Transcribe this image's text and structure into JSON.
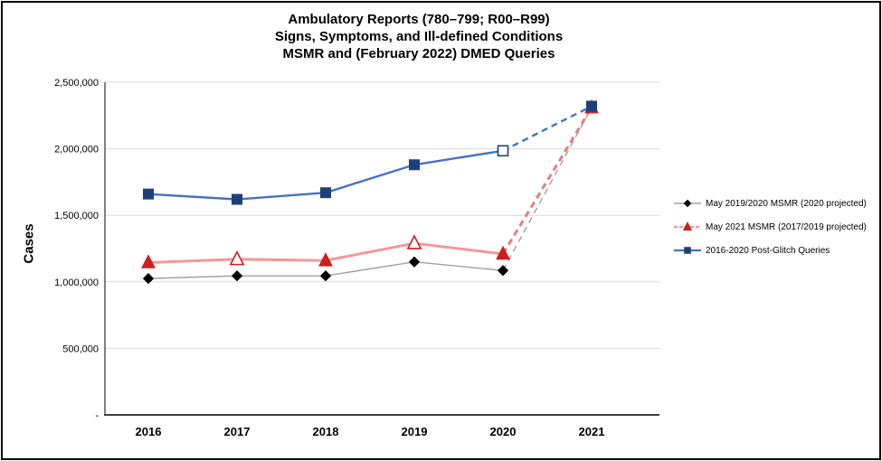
{
  "title": {
    "line1": "Ambulatory Reports (780–799; R00–R99)",
    "line2": "Signs, Symptoms, and Ill-defined Conditions",
    "line3": "MSMR and (February 2022) DMED Queries"
  },
  "chart_data": {
    "type": "line",
    "title": "Ambulatory Reports (780–799; R00–R99) Signs, Symptoms, and Ill-defined Conditions MSMR and (February 2022) DMED Queries",
    "xlabel": "",
    "ylabel": "Cases",
    "categories": [
      2016,
      2017,
      2018,
      2019,
      2020,
      2021
    ],
    "x_tick_labels": [
      "2016",
      "2017",
      "2018",
      "2019",
      "2020",
      "2021"
    ],
    "ylim": [
      0,
      2500000
    ],
    "y_ticks": [
      {
        "value": 0,
        "label": "-"
      },
      {
        "value": 500000,
        "label": "500,000"
      },
      {
        "value": 1000000,
        "label": "1,000,000"
      },
      {
        "value": 1500000,
        "label": "1,500,000"
      },
      {
        "value": 2000000,
        "label": "2,000,000"
      },
      {
        "value": 2500000,
        "label": "2,500,000"
      }
    ],
    "grid": true,
    "grid_color": "#D9D9D9",
    "axis_color": "#404040",
    "legend_position": "right",
    "series": [
      {
        "name": "May 2019/2020 MSMR (2020 projected)",
        "values": [
          1025000,
          1045000,
          1045000,
          1150000,
          1085000,
          2310000
        ],
        "line_color": "#A0A0A0",
        "dash_color": "#A0A0A0",
        "marker": "diamond",
        "marker_color": "#000000",
        "open_markers": [],
        "dashed_from_index": 4,
        "line_width": 1.4,
        "marker_size": 9,
        "legend_sample_dashed": false
      },
      {
        "name": "May 2021 MSMR (2017/2019 projected)",
        "values": [
          1145000,
          1170000,
          1160000,
          1290000,
          1210000,
          2310000
        ],
        "line_color": "#F49898",
        "dash_color": "#E87D7D",
        "marker": "triangle",
        "marker_color": "#CC1F1F",
        "open_markers": [
          1,
          3
        ],
        "dashed_from_index": 4,
        "line_width": 3,
        "marker_size": 13,
        "legend_sample_dashed": true
      },
      {
        "name": "2016-2020 Post-Glitch Queries",
        "values": [
          1660000,
          1620000,
          1670000,
          1880000,
          1985000,
          2320000
        ],
        "line_color": "#4472C4",
        "dash_color": "#4472C4",
        "marker": "square",
        "marker_color": "#1F4077",
        "open_markers": [
          4
        ],
        "dashed_from_index": 4,
        "line_width": 2.4,
        "marker_size": 11,
        "legend_sample_dashed": false
      }
    ]
  }
}
